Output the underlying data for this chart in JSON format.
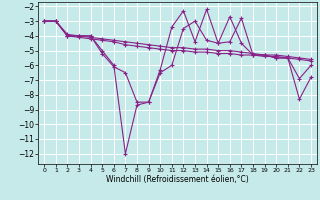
{
  "bg_color": "#c6eaea",
  "grid_color": "#ffffff",
  "line_color": "#882288",
  "xlabel": "Windchill (Refroidissement éolien,°C)",
  "xlim": [
    -0.5,
    23.5
  ],
  "ylim": [
    -12.7,
    -1.7
  ],
  "yticks": [
    -12,
    -11,
    -10,
    -9,
    -8,
    -7,
    -6,
    -5,
    -4,
    -3,
    -2
  ],
  "xticks": [
    0,
    1,
    2,
    3,
    4,
    5,
    6,
    7,
    8,
    9,
    10,
    11,
    12,
    13,
    14,
    15,
    16,
    17,
    18,
    19,
    20,
    21,
    22,
    23
  ],
  "series": [
    {
      "x": [
        0,
        1,
        2,
        3,
        4,
        5,
        6,
        7,
        8,
        9,
        10,
        11,
        12,
        13,
        14,
        15,
        16,
        17,
        18,
        19,
        20,
        21,
        22,
        23
      ],
      "y": [
        -3,
        -3,
        -4,
        -4,
        -4,
        -5,
        -6,
        -12,
        -8.7,
        -8.5,
        -6.5,
        -6,
        -3.5,
        -3,
        -4.3,
        -4.5,
        -4.4,
        -2.8,
        -5.3,
        -5.3,
        -5.5,
        -5.5,
        -8.3,
        -6.8
      ]
    },
    {
      "x": [
        0,
        1,
        2,
        3,
        4,
        5,
        6,
        7,
        8,
        9,
        10,
        11,
        12,
        13,
        14,
        15,
        16,
        17,
        18,
        19,
        20,
        21,
        22,
        23
      ],
      "y": [
        -3,
        -3,
        -3.9,
        -4.0,
        -4.1,
        -4.2,
        -4.3,
        -4.4,
        -4.5,
        -4.6,
        -4.7,
        -4.8,
        -4.8,
        -4.9,
        -4.9,
        -5.0,
        -5.0,
        -5.1,
        -5.2,
        -5.3,
        -5.3,
        -5.4,
        -5.5,
        -5.6
      ]
    },
    {
      "x": [
        0,
        1,
        2,
        3,
        4,
        5,
        6,
        7,
        8,
        9,
        10,
        11,
        12,
        13,
        14,
        15,
        16,
        17,
        18,
        19,
        20,
        21,
        22,
        23
      ],
      "y": [
        -3,
        -3,
        -4.0,
        -4.1,
        -4.2,
        -4.3,
        -4.4,
        -4.6,
        -4.7,
        -4.8,
        -4.9,
        -5.0,
        -5.0,
        -5.1,
        -5.1,
        -5.2,
        -5.2,
        -5.3,
        -5.3,
        -5.4,
        -5.4,
        -5.5,
        -5.6,
        -5.7
      ]
    },
    {
      "x": [
        0,
        1,
        2,
        3,
        4,
        5,
        6,
        7,
        8,
        9,
        10,
        11,
        12,
        13,
        14,
        15,
        16,
        17,
        18,
        19,
        20,
        21,
        22,
        23
      ],
      "y": [
        -3,
        -3,
        -4,
        -4,
        -4,
        -5.2,
        -6.1,
        -6.5,
        -8.5,
        -8.5,
        -6.3,
        -3.4,
        -2.3,
        -4.4,
        -2.2,
        -4.5,
        -2.7,
        -4.5,
        -5.3,
        -5.3,
        -5.5,
        -5.5,
        -6.9,
        -6.0
      ]
    }
  ]
}
